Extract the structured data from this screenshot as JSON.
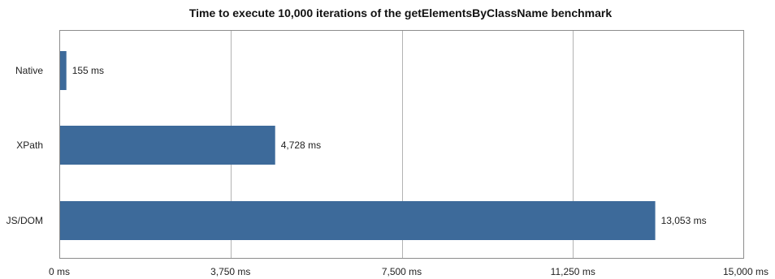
{
  "chart_data": {
    "type": "bar",
    "orientation": "horizontal",
    "title": "Time to execute 10,000 iterations of the getElementsByClassName benchmark",
    "categories": [
      "Native",
      "XPath",
      "JS/DOM"
    ],
    "values": [
      155,
      4728,
      13053
    ],
    "value_labels": [
      "155 ms",
      "4,728 ms",
      "13,053 ms"
    ],
    "xlim": [
      0,
      15000
    ],
    "ticks": [
      0,
      3750,
      7500,
      11250,
      15000
    ],
    "tick_labels": [
      "0 ms",
      "3,750 ms",
      "7,500 ms",
      "11,250 ms",
      "15,000 ms"
    ],
    "grid": true,
    "bar_color": "#3d6a9a",
    "grid_color": "#b3b3b3",
    "frame_color": "#8c8c8c"
  }
}
